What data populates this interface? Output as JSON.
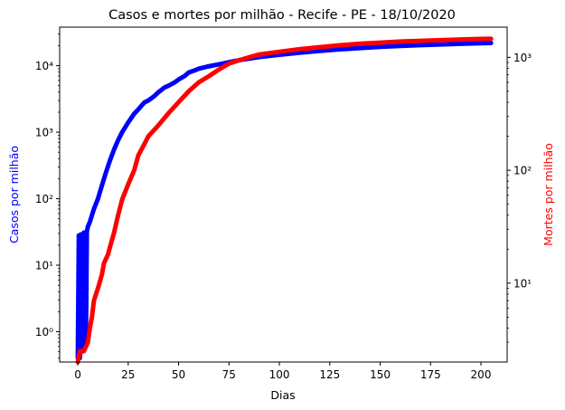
{
  "chart_data": {
    "type": "line",
    "title": "Casos e mortes por milhão - Recife - PE - 18/10/2020",
    "xlabel": "Dias",
    "ylabel_left": "Casos por milhão",
    "ylabel_right": "Mortes por milhão",
    "xlim": [
      -9,
      213
    ],
    "xticks": [
      0,
      25,
      50,
      75,
      100,
      125,
      150,
      175,
      200
    ],
    "ylim_left": [
      0.35,
      38000
    ],
    "ylim_right": [
      2,
      1850
    ],
    "yscale": "log",
    "yticks_left": [
      1,
      10,
      100,
      1000,
      10000
    ],
    "yticks_left_labels": [
      "10⁰",
      "10¹",
      "10²",
      "10³",
      "10⁴"
    ],
    "yticks_right": [
      10,
      100,
      1000
    ],
    "yticks_right_labels": [
      "10¹",
      "10²",
      "10³"
    ],
    "grid": false,
    "series": [
      {
        "name": "Casos por milhão",
        "axis": "left",
        "color": "#0000ff",
        "x": [
          0,
          0.5,
          1,
          1.5,
          2,
          3,
          4,
          4.5,
          5,
          6,
          8,
          10,
          12,
          14,
          16,
          18,
          20,
          22,
          25,
          28,
          30,
          33,
          35,
          38,
          40,
          43,
          45,
          48,
          50,
          53,
          55,
          58,
          60,
          65,
          70,
          75,
          80,
          85,
          90,
          100,
          110,
          120,
          130,
          140,
          150,
          160,
          170,
          180,
          190,
          200,
          205
        ],
        "y": [
          0.4,
          28,
          0.4,
          29,
          0.5,
          31,
          0.6,
          32,
          38,
          45,
          70,
          100,
          160,
          250,
          380,
          550,
          760,
          1000,
          1400,
          1900,
          2200,
          2800,
          3000,
          3500,
          4000,
          4700,
          5000,
          5600,
          6200,
          7000,
          7900,
          8500,
          9000,
          9800,
          10500,
          11300,
          12100,
          12800,
          13500,
          14600,
          15700,
          16700,
          17600,
          18400,
          19200,
          19800,
          20400,
          20900,
          21400,
          21800,
          22000
        ]
      },
      {
        "name": "Mortes por milhão",
        "axis": "right",
        "color": "#ff0000",
        "x": [
          0,
          1,
          3,
          5,
          6,
          7,
          8,
          10,
          12,
          13,
          15,
          16,
          18,
          20,
          22,
          25,
          28,
          30,
          33,
          35,
          40,
          45,
          50,
          55,
          60,
          65,
          70,
          75,
          80,
          85,
          90,
          100,
          110,
          120,
          130,
          140,
          150,
          160,
          170,
          180,
          190,
          200,
          205
        ],
        "y": [
          2,
          2.5,
          2.5,
          3,
          4,
          5,
          7,
          9,
          12,
          15,
          18,
          21,
          28,
          40,
          55,
          75,
          100,
          135,
          170,
          200,
          250,
          320,
          400,
          500,
          600,
          680,
          780,
          880,
          940,
          1000,
          1060,
          1120,
          1180,
          1230,
          1280,
          1320,
          1350,
          1380,
          1400,
          1420,
          1440,
          1455,
          1460
        ]
      }
    ]
  }
}
